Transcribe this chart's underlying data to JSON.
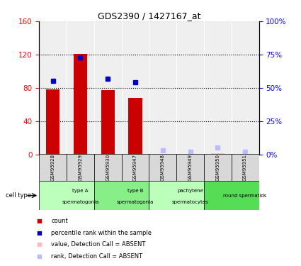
{
  "title": "GDS2390 / 1427167_at",
  "samples": [
    "GSM95928",
    "GSM95929",
    "GSM95930",
    "GSM95947",
    "GSM95948",
    "GSM95949",
    "GSM95950",
    "GSM95951"
  ],
  "counts": [
    78,
    121,
    77,
    68,
    0.5,
    0.5,
    1.0,
    0.5
  ],
  "percentile_rank": [
    55,
    73,
    57,
    54,
    null,
    null,
    null,
    null
  ],
  "absent_value": [
    null,
    null,
    null,
    null,
    0.5,
    0.5,
    1.0,
    0.5
  ],
  "absent_rank": [
    null,
    null,
    null,
    null,
    3,
    2,
    5,
    2
  ],
  "cell_types": [
    {
      "label": "type A\nspermatogonia",
      "start": 0,
      "end": 2,
      "color": "#bbffbb"
    },
    {
      "label": "type B\nspermatogonia",
      "start": 2,
      "end": 4,
      "color": "#88ee88"
    },
    {
      "label": "pachytene\nspermatocytes",
      "start": 4,
      "end": 6,
      "color": "#bbffbb"
    },
    {
      "label": "round spermatids",
      "start": 6,
      "end": 8,
      "color": "#55dd55"
    }
  ],
  "ylim_left": [
    0,
    160
  ],
  "ylim_right": [
    0,
    100
  ],
  "left_ticks": [
    0,
    40,
    80,
    120,
    160
  ],
  "right_ticks": [
    0,
    25,
    50,
    75,
    100
  ],
  "bar_color": "#cc0000",
  "dot_color": "#0000cc",
  "absent_val_color": "#ffbbbb",
  "absent_rank_color": "#bbbbff",
  "bg_color": "#ffffff",
  "sample_bg_color": "#d8d8d8"
}
